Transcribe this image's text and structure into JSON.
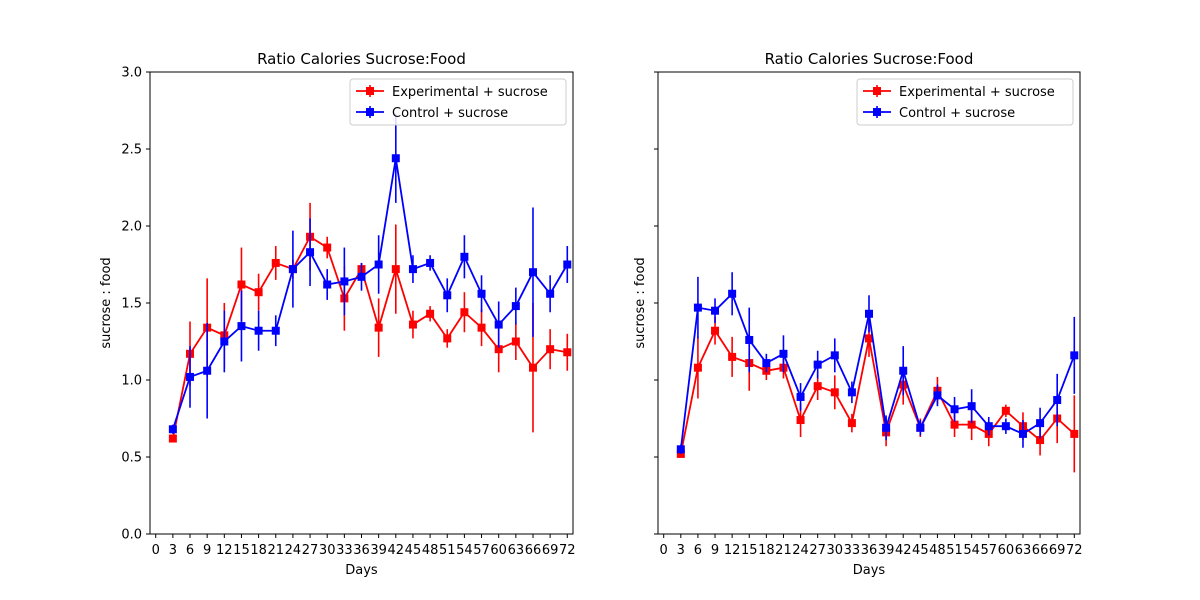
{
  "chart_data": [
    {
      "type": "line",
      "title": "Ratio Calories Sucrose:Food",
      "xlabel": "Days",
      "ylabel": "sucrose : food",
      "xlim": [
        -1,
        73
      ],
      "ylim": [
        0,
        3.0
      ],
      "xticks": [
        0,
        3,
        6,
        9,
        12,
        15,
        18,
        21,
        24,
        27,
        30,
        33,
        36,
        39,
        42,
        45,
        48,
        51,
        54,
        57,
        60,
        63,
        66,
        69,
        72
      ],
      "yticks": [
        0.0,
        0.5,
        1.0,
        1.5,
        2.0,
        2.5,
        3.0
      ],
      "ytick_labels": [
        "0.0",
        "0.5",
        "1.0",
        "1.5",
        "2.0",
        "2.5",
        "3.0"
      ],
      "grid": false,
      "legend_position": "top-right",
      "series": [
        {
          "name": "Experimental + sucrose",
          "color": "#ff0000",
          "x": [
            3,
            6,
            9,
            12,
            15,
            18,
            21,
            24,
            27,
            30,
            33,
            36,
            39,
            42,
            45,
            48,
            51,
            54,
            57,
            60,
            63,
            66,
            69,
            72
          ],
          "y": [
            0.62,
            1.17,
            1.34,
            1.29,
            1.62,
            1.57,
            1.76,
            1.72,
            1.93,
            1.86,
            1.53,
            1.72,
            1.34,
            1.72,
            1.36,
            1.43,
            1.27,
            1.44,
            1.34,
            1.2,
            1.25,
            1.08,
            1.2,
            1.18
          ],
          "err": [
            0.02,
            0.21,
            0.32,
            0.21,
            0.24,
            0.12,
            0.11,
            0.06,
            0.22,
            0.07,
            0.21,
            0.04,
            0.19,
            0.29,
            0.09,
            0.05,
            0.06,
            0.13,
            0.12,
            0.15,
            0.12,
            0.42,
            0.13,
            0.12
          ]
        },
        {
          "name": "Control + sucrose",
          "color": "#0000ff",
          "x": [
            3,
            6,
            9,
            12,
            15,
            18,
            21,
            24,
            27,
            30,
            33,
            36,
            39,
            42,
            45,
            48,
            51,
            54,
            57,
            60,
            63,
            66,
            69,
            72
          ],
          "y": [
            0.68,
            1.02,
            1.06,
            1.25,
            1.35,
            1.32,
            1.32,
            1.72,
            1.83,
            1.62,
            1.64,
            1.67,
            1.75,
            2.44,
            1.72,
            1.76,
            1.55,
            1.8,
            1.56,
            1.36,
            1.48,
            1.7,
            1.56,
            1.75
          ],
          "err": [
            0.03,
            0.2,
            0.31,
            0.2,
            0.23,
            0.13,
            0.1,
            0.25,
            0.22,
            0.1,
            0.22,
            0.09,
            0.19,
            0.29,
            0.09,
            0.05,
            0.11,
            0.14,
            0.12,
            0.15,
            0.12,
            0.42,
            0.12,
            0.12
          ]
        }
      ]
    },
    {
      "type": "line",
      "title": "Ratio Calories Sucrose:Food",
      "xlabel": "Days",
      "ylabel": "sucrose : food",
      "xlim": [
        -1,
        73
      ],
      "ylim": [
        0,
        3.0
      ],
      "xticks": [
        0,
        3,
        6,
        9,
        12,
        15,
        18,
        21,
        24,
        27,
        30,
        33,
        36,
        39,
        42,
        45,
        48,
        51,
        54,
        57,
        60,
        63,
        66,
        69,
        72
      ],
      "yticks": [
        0.0,
        0.5,
        1.0,
        1.5,
        2.0,
        2.5,
        3.0
      ],
      "ytick_labels": [],
      "grid": false,
      "legend_position": "top-right",
      "series": [
        {
          "name": "Experimental + sucrose",
          "color": "#ff0000",
          "x": [
            3,
            6,
            9,
            12,
            15,
            18,
            21,
            24,
            27,
            30,
            33,
            36,
            39,
            42,
            45,
            48,
            51,
            54,
            57,
            60,
            63,
            66,
            69,
            72
          ],
          "y": [
            0.52,
            1.08,
            1.32,
            1.15,
            1.11,
            1.06,
            1.08,
            0.74,
            0.96,
            0.92,
            0.72,
            1.27,
            0.66,
            0.97,
            0.69,
            0.93,
            0.71,
            0.71,
            0.65,
            0.8,
            0.7,
            0.61,
            0.75,
            0.65
          ],
          "err": [
            0.02,
            0.2,
            0.09,
            0.13,
            0.18,
            0.06,
            0.07,
            0.11,
            0.09,
            0.11,
            0.06,
            0.12,
            0.09,
            0.13,
            0.06,
            0.09,
            0.08,
            0.1,
            0.08,
            0.04,
            0.09,
            0.1,
            0.16,
            0.25
          ]
        },
        {
          "name": "Control + sucrose",
          "color": "#0000ff",
          "x": [
            3,
            6,
            9,
            12,
            15,
            18,
            21,
            24,
            27,
            30,
            33,
            36,
            39,
            42,
            45,
            48,
            51,
            54,
            57,
            60,
            63,
            66,
            69,
            72
          ],
          "y": [
            0.55,
            1.47,
            1.45,
            1.56,
            1.26,
            1.11,
            1.17,
            0.89,
            1.1,
            1.16,
            0.92,
            1.43,
            0.69,
            1.06,
            0.69,
            0.9,
            0.81,
            0.83,
            0.7,
            0.7,
            0.65,
            0.72,
            0.87,
            1.16
          ],
          "err": [
            0.03,
            0.2,
            0.08,
            0.14,
            0.21,
            0.06,
            0.12,
            0.09,
            0.09,
            0.11,
            0.07,
            0.12,
            0.08,
            0.16,
            0.05,
            0.07,
            0.08,
            0.11,
            0.06,
            0.05,
            0.09,
            0.1,
            0.17,
            0.25
          ]
        }
      ]
    }
  ]
}
